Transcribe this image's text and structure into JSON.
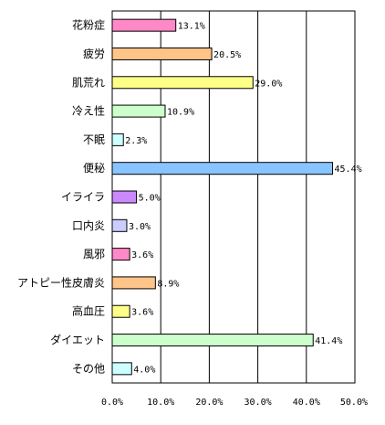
{
  "chart_data": {
    "type": "bar",
    "orientation": "horizontal",
    "categories": [
      "花粉症",
      "疲労",
      "肌荒れ",
      "冷え性",
      "不眠",
      "便秘",
      "イライラ",
      "口内炎",
      "風邪",
      "アトピー性皮膚炎",
      "高血圧",
      "ダイエット",
      "その他"
    ],
    "values": [
      13.1,
      20.5,
      29.0,
      10.9,
      2.3,
      45.4,
      5.0,
      3.0,
      3.6,
      8.9,
      3.6,
      41.4,
      4.0
    ],
    "value_labels": [
      "13.1%",
      "20.5%",
      "29.0%",
      "10.9%",
      "2.3%",
      "45.4%",
      "5.0%",
      "3.0%",
      "3.6%",
      "8.9%",
      "3.6%",
      "41.4%",
      "4.0%"
    ],
    "colors": [
      "#ff88c8",
      "#ffc488",
      "#ffff88",
      "#ccffcc",
      "#ccffff",
      "#88c4ff",
      "#cc88ff",
      "#ccccff",
      "#ff88c8",
      "#ffc488",
      "#ffff88",
      "#ccffcc",
      "#ccffff"
    ],
    "xlim": [
      0,
      50
    ],
    "x_ticks": [
      "0.0%",
      "10.0%",
      "20.0%",
      "30.0%",
      "40.0%",
      "50.0%"
    ],
    "grid": true,
    "title": "",
    "xlabel": "",
    "ylabel": ""
  }
}
